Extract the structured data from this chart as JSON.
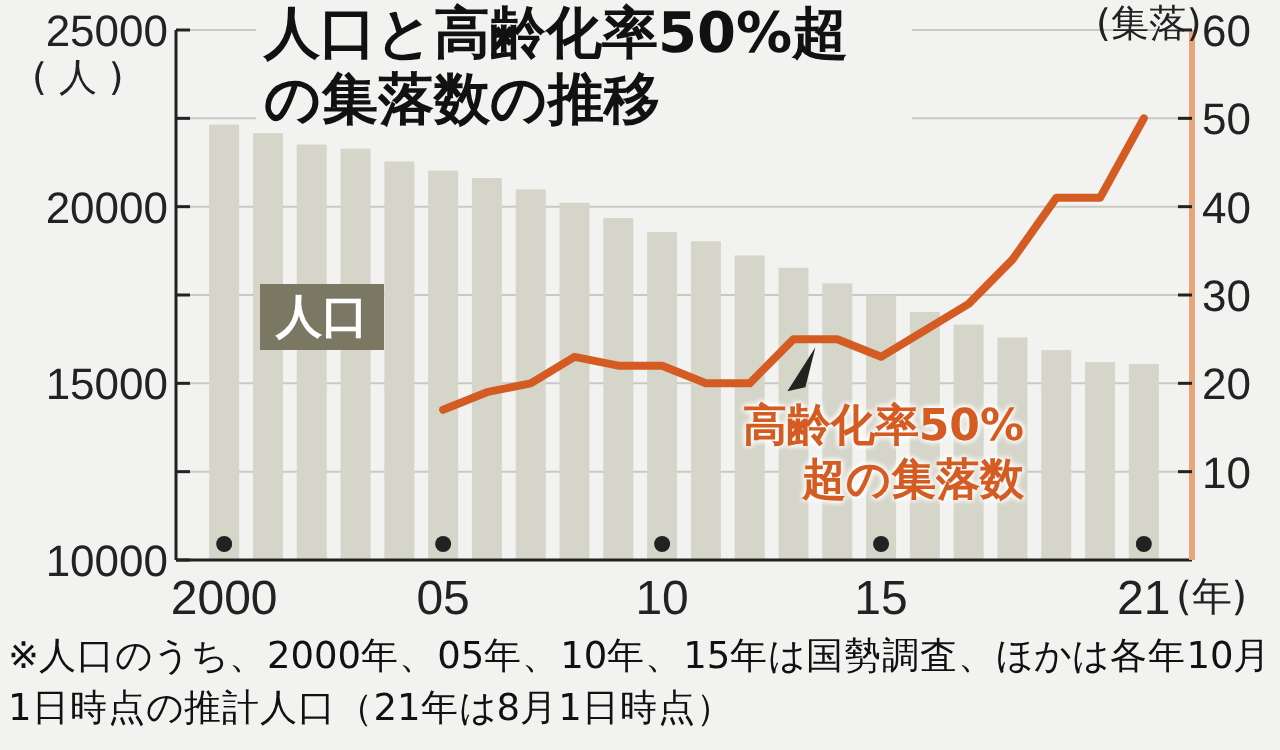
{
  "chart_data": {
    "type": "bar",
    "title": "人口と高齢化率50%超の集落数の推移",
    "xlabel": "(年)",
    "ylabel": "(人)",
    "y2label": "(集落)",
    "categories": [
      "2000",
      null,
      null,
      null,
      null,
      "05",
      null,
      null,
      null,
      null,
      "10",
      null,
      null,
      null,
      null,
      "15",
      null,
      null,
      null,
      null,
      null,
      "21"
    ],
    "series": [
      {
        "name": "人口",
        "type": "bar",
        "color": "#d6d5ca",
        "values": [
          22320,
          22080,
          21760,
          21640,
          21280,
          21020,
          20810,
          20490,
          20110,
          19680,
          19280,
          19020,
          18620,
          18270,
          17830,
          17490,
          17020,
          16660,
          16300,
          15940,
          15600,
          15550
        ]
      },
      {
        "name": "高齢化率50%超の集落数",
        "type": "line",
        "axis": "y2",
        "color": "#d45c22",
        "values": [
          null,
          null,
          null,
          null,
          null,
          17,
          19,
          20,
          23,
          22,
          22,
          20,
          20,
          25,
          25,
          23,
          26,
          29,
          34,
          41,
          41,
          50
        ]
      }
    ],
    "ylim": [
      10000,
      25000
    ],
    "yticks": [
      10000,
      {
        "value": 12500,
        "label": null
      },
      15000,
      {
        "value": 17500,
        "label": null
      },
      20000,
      {
        "value": 22500,
        "label": null
      },
      25000
    ],
    "y2lim": [
      0,
      60
    ],
    "y2ticks": [
      10,
      20,
      30,
      40,
      50,
      60
    ],
    "grid": "y",
    "annotations": [
      "※人口のうち、2000年、05年、10年、15年は国勢調査、ほかは各年10月1日時点の推計人口（21年は8月1日時点）"
    ]
  }
}
